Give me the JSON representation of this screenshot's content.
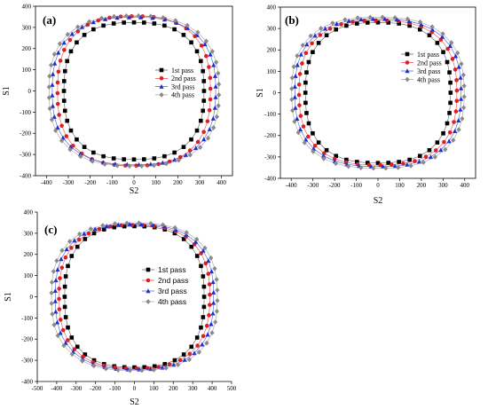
{
  "chart_data": [
    {
      "type": "line",
      "panel_label": "(a)",
      "xlabel": "S2",
      "ylabel": "S1",
      "xlim": [
        -450,
        450
      ],
      "ylim": [
        -400,
        400
      ],
      "xticks": [
        -400,
        -300,
        -200,
        -100,
        0,
        100,
        200,
        300,
        400
      ],
      "yticks": [
        -400,
        -300,
        -200,
        -100,
        0,
        100,
        200,
        300,
        400
      ],
      "legend_position": "center-right",
      "series": [
        {
          "name": "1st pass",
          "marker": "square",
          "color": "#000000",
          "radius": [
            330,
            330
          ]
        },
        {
          "name": "2nd pass",
          "marker": "circle",
          "color": "#e02020",
          "radius": [
            360,
            360
          ]
        },
        {
          "name": "3rd pass",
          "marker": "triangle",
          "color": "#1a2fd6",
          "radius": [
            385,
            355
          ]
        },
        {
          "name": "4th pass",
          "marker": "diamond",
          "color": "#8a8a8a",
          "radius": [
            400,
            362
          ]
        }
      ]
    },
    {
      "type": "line",
      "panel_label": "(b)",
      "xlabel": "S2",
      "ylabel": "S1",
      "xlim": [
        -450,
        450
      ],
      "ylim": [
        -400,
        400
      ],
      "xticks": [
        -400,
        -300,
        -200,
        -100,
        0,
        100,
        200,
        300,
        400
      ],
      "yticks": [
        -400,
        -300,
        -200,
        -100,
        0,
        100,
        200,
        300,
        400
      ],
      "legend_position": "center-right",
      "series": [
        {
          "name": "1st pass",
          "marker": "square",
          "color": "#000000",
          "radius": [
            345,
            335
          ]
        },
        {
          "name": "2nd pass",
          "marker": "circle",
          "color": "#e02020",
          "radius": [
            375,
            345
          ]
        },
        {
          "name": "3rd pass",
          "marker": "triangle",
          "color": "#1a2fd6",
          "radius": [
            395,
            352
          ]
        },
        {
          "name": "4th pass",
          "marker": "diamond",
          "color": "#8a8a8a",
          "radius": [
            410,
            360
          ]
        }
      ]
    },
    {
      "type": "line",
      "panel_label": "(c)",
      "xlabel": "S2",
      "ylabel": "S1",
      "xlim": [
        -500,
        500
      ],
      "ylim": [
        -400,
        400
      ],
      "xticks": [
        -500,
        -400,
        -300,
        -200,
        -100,
        0,
        100,
        200,
        300,
        400,
        500
      ],
      "yticks": [
        -400,
        -300,
        -200,
        -100,
        0,
        100,
        200,
        300,
        400
      ],
      "legend_position": "center",
      "series": [
        {
          "name": "1st pass",
          "marker": "square",
          "color": "#000000",
          "radius": [
            370,
            340
          ]
        },
        {
          "name": "2nd pass",
          "marker": "circle",
          "color": "#e02020",
          "radius": [
            400,
            345
          ]
        },
        {
          "name": "3rd pass",
          "marker": "triangle",
          "color": "#1a2fd6",
          "radius": [
            420,
            350
          ]
        },
        {
          "name": "4th pass",
          "marker": "diamond",
          "color": "#8a8a8a",
          "radius": [
            440,
            355
          ]
        }
      ]
    }
  ]
}
